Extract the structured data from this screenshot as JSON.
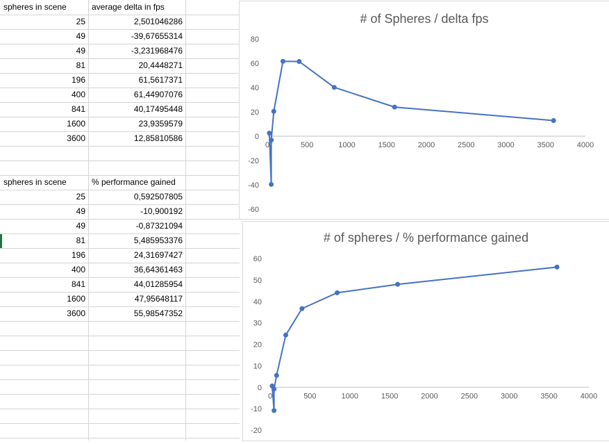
{
  "sheet": {
    "table1": {
      "headers": [
        "spheres in scene",
        "average delta in fps"
      ],
      "rows": [
        [
          "25",
          "2,501046286"
        ],
        [
          "49",
          "-39,67655314"
        ],
        [
          "49",
          "-3,231968476"
        ],
        [
          "81",
          "20,4448271"
        ],
        [
          "196",
          "61,5617371"
        ],
        [
          "400",
          "61,44907076"
        ],
        [
          "841",
          "40,17495448"
        ],
        [
          "1600",
          "23,9359579"
        ],
        [
          "3600",
          "12,85810586"
        ]
      ]
    },
    "table2": {
      "headers": [
        "spheres in scene",
        "% performance gained"
      ],
      "rows": [
        [
          "25",
          "0,592507805"
        ],
        [
          "49",
          "-10,900192"
        ],
        [
          "49",
          "-0,87321094"
        ],
        [
          "81",
          "5,485953376"
        ],
        [
          "196",
          "24,31697427"
        ],
        [
          "400",
          "36,64361463"
        ],
        [
          "841",
          "44,01285954"
        ],
        [
          "1600",
          "47,95648117"
        ],
        [
          "3600",
          "55,98547352"
        ]
      ]
    }
  },
  "chart_data": [
    {
      "type": "line",
      "title": "# of Spheres / delta fps",
      "xlabel": "",
      "ylabel": "",
      "x": [
        25,
        49,
        49,
        81,
        196,
        400,
        841,
        1600,
        3600
      ],
      "y": [
        2.501046286,
        -39.67655314,
        -3.231968476,
        20.4448271,
        61.5617371,
        61.44907076,
        40.17495448,
        23.9359579,
        12.85810586
      ],
      "xlim": [
        0,
        4000
      ],
      "ylim": [
        -60,
        80
      ],
      "xticks": [
        0,
        500,
        1000,
        1500,
        2000,
        2500,
        3000,
        3500,
        4000
      ],
      "yticks": [
        -60,
        -40,
        -20,
        0,
        20,
        40,
        60,
        80
      ],
      "color": "#4472c4",
      "grid": false,
      "legend": "none"
    },
    {
      "type": "line",
      "title": "# of spheres / % performance gained",
      "xlabel": "",
      "ylabel": "",
      "x": [
        25,
        49,
        49,
        81,
        196,
        400,
        841,
        1600,
        3600
      ],
      "y": [
        0.592507805,
        -10.900192,
        -0.87321094,
        5.485953376,
        24.31697427,
        36.64361463,
        44.01285954,
        47.95648117,
        55.98547352
      ],
      "xlim": [
        0,
        4000
      ],
      "ylim": [
        -20,
        60
      ],
      "xticks": [
        0,
        500,
        1000,
        1500,
        2000,
        2500,
        3000,
        3500,
        4000
      ],
      "yticks": [
        -20,
        -10,
        0,
        10,
        20,
        30,
        40,
        50,
        60
      ],
      "color": "#4472c4",
      "grid": false,
      "legend": "none"
    }
  ]
}
